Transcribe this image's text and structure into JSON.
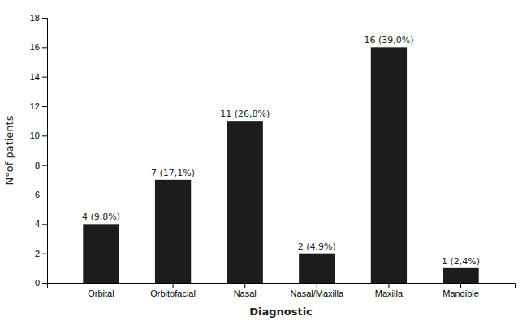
{
  "chart_data": {
    "type": "bar",
    "categories": [
      "Orbital",
      "Orbitofacial",
      "Nasal",
      "Nasal/Maxilla",
      "Maxilla",
      "Mandible"
    ],
    "values": [
      4,
      7,
      11,
      2,
      16,
      1
    ],
    "value_labels": [
      "4 (9,8%)",
      "7 (17,1%)",
      "11 (26,8%)",
      "2 (4,9%)",
      "16 (39,0%)",
      "1 (2,4%)"
    ],
    "color": "#1c1c1c",
    "xlabel": "Diagnostic",
    "ylabel": "N°of patients",
    "ylim": [
      0,
      18
    ],
    "yticks": [
      0,
      2,
      4,
      6,
      8,
      10,
      12,
      14,
      16,
      18
    ],
    "grid": false
  }
}
